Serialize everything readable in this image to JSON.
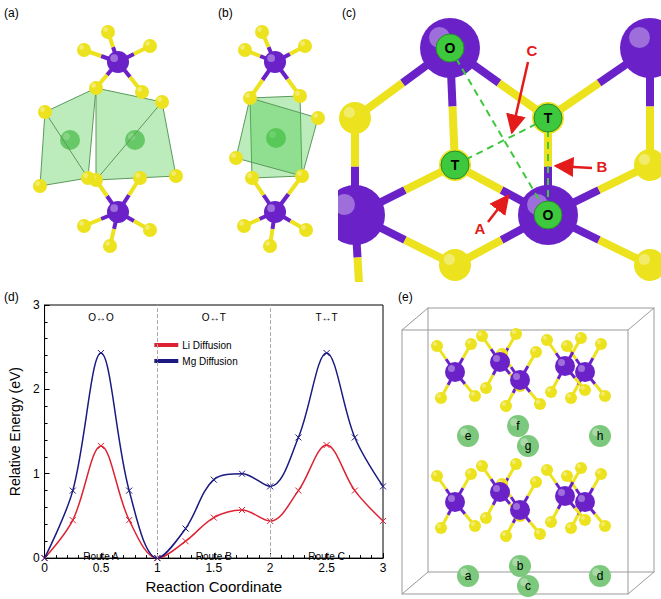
{
  "panels": [
    {
      "label": "(a)"
    },
    {
      "label": "(b)"
    },
    {
      "label": "(c)",
      "sites": [
        "O",
        "T",
        "T",
        "O"
      ],
      "routes": [
        "A",
        "B",
        "C"
      ]
    },
    {
      "label": "(d)"
    },
    {
      "label": "(e)",
      "sites": [
        "a",
        "b",
        "c",
        "d",
        "e",
        "f",
        "g",
        "h"
      ]
    }
  ],
  "chart_data": {
    "type": "line",
    "x_label": "Reaction Coordinate",
    "y_label": "Relative Energy (eV)",
    "x": [
      0,
      0.25,
      0.5,
      0.75,
      1,
      1.25,
      1.5,
      1.75,
      2,
      2.25,
      2.5,
      2.75,
      3
    ],
    "series": [
      {
        "name": "Li Diffusion",
        "color": "#dd2233",
        "values": [
          0,
          0.45,
          1.33,
          0.45,
          0,
          0.2,
          0.48,
          0.57,
          0.44,
          0.8,
          1.34,
          0.8,
          0.44
        ]
      },
      {
        "name": "Mg Diffusion",
        "color": "#1a1a80",
        "values": [
          0,
          0.8,
          2.43,
          0.8,
          0,
          0.35,
          0.93,
          1.0,
          0.85,
          1.43,
          2.43,
          1.43,
          0.85
        ]
      }
    ],
    "regions": [
      {
        "label": "O↔O",
        "route": "Route A",
        "from": 0,
        "to": 1
      },
      {
        "label": "O↔T",
        "route": "Route B",
        "from": 1,
        "to": 2
      },
      {
        "label": "T↔T",
        "route": "Route C",
        "from": 2,
        "to": 3
      }
    ],
    "xlim": [
      0,
      3
    ],
    "xticks": [
      0,
      0.5,
      1,
      1.5,
      2,
      2.5,
      3
    ],
    "ylim": [
      0,
      3
    ],
    "yticks": [
      0,
      1,
      2,
      3
    ],
    "marker": "x",
    "grid": false,
    "legend": "top"
  }
}
